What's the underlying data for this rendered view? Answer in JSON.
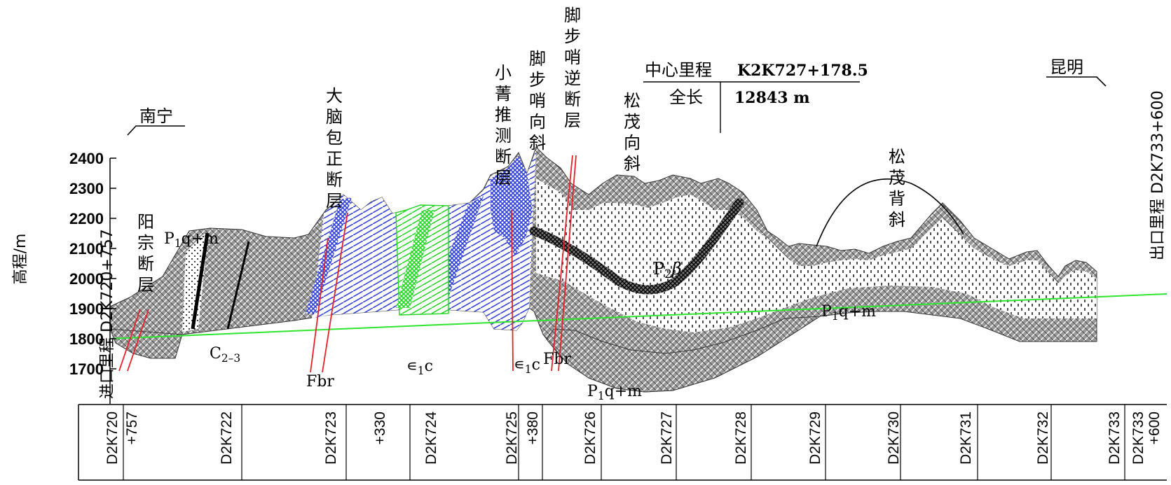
{
  "y_axis": {
    "label": "高程/m",
    "ticks": [
      "2400",
      "2300",
      "2200",
      "2100",
      "2000",
      "1900",
      "1800",
      "1700"
    ]
  },
  "entrance_label": "进口里程  D2K720+757",
  "exit_label": "出口里程  D2K733+600",
  "directions": {
    "left": "南宁",
    "right": "昆明"
  },
  "center_box": {
    "center_label": "中心里程",
    "center_value": "K2K727+178.5",
    "length_label": "全长",
    "length_value": "12843 m"
  },
  "structures": [
    {
      "id": "yangzong",
      "label": "阳宗断层"
    },
    {
      "id": "danaobao",
      "label": "大脑包正断层"
    },
    {
      "id": "xiaojing",
      "label": "小菁推测断层"
    },
    {
      "id": "jiaobushao-syncline",
      "label": "脚步哨向斜"
    },
    {
      "id": "jiaobushao-fault",
      "label": "脚步哨逆断层"
    },
    {
      "id": "songmao-syncline",
      "label": "松茂向斜"
    },
    {
      "id": "songmao-anticline",
      "label": "松茂背斜"
    }
  ],
  "strata_labels": [
    {
      "id": "p1qm-top",
      "base": "P",
      "sub": "1",
      "rest": "q+m"
    },
    {
      "id": "c23",
      "base": "C",
      "sub": "2–3",
      "rest": ""
    },
    {
      "id": "fbr-left",
      "base": "Fbr",
      "sub": "",
      "rest": ""
    },
    {
      "id": "e1c-mid",
      "base": "∊",
      "sub": "1",
      "rest": "c"
    },
    {
      "id": "e1c-right",
      "base": "∊",
      "sub": "1",
      "rest": "c"
    },
    {
      "id": "fbr-right",
      "base": "Fbr",
      "sub": "",
      "rest": ""
    },
    {
      "id": "p2b",
      "base": "P",
      "sub": "2",
      "rest": "β"
    },
    {
      "id": "p1qm-right",
      "base": "P",
      "sub": "1",
      "rest": "q+m"
    },
    {
      "id": "p1qm-bottom",
      "base": "P",
      "sub": "1",
      "rest": "q+m"
    }
  ],
  "stations": [
    {
      "line1": "D2K720",
      "line2": ""
    },
    {
      "line1": "+757",
      "line2": ""
    },
    {
      "line1": "D2K722",
      "line2": ""
    },
    {
      "line1": "D2K723",
      "line2": ""
    },
    {
      "line1": "+330",
      "line2": ""
    },
    {
      "line1": "D2K724",
      "line2": ""
    },
    {
      "line1": "D2K725",
      "line2": ""
    },
    {
      "line1": "+380",
      "line2": ""
    },
    {
      "line1": "D2K726",
      "line2": ""
    },
    {
      "line1": "D2K727",
      "line2": ""
    },
    {
      "line1": "D2K728",
      "line2": ""
    },
    {
      "line1": "D2K729",
      "line2": ""
    },
    {
      "line1": "D2K730",
      "line2": ""
    },
    {
      "line1": "D2K731",
      "line2": ""
    },
    {
      "line1": "D2K732",
      "line2": ""
    },
    {
      "line1": "D2K733",
      "line2": ""
    },
    {
      "line1": "D2K733",
      "line2": "+600"
    }
  ],
  "colors": {
    "fault_line": "#e8202a",
    "tunnel_line": "#2ee62e",
    "blue_hatch": "#2f3fd6",
    "green_hatch": "#22d622",
    "rock_gray": "#8a8a8a"
  }
}
